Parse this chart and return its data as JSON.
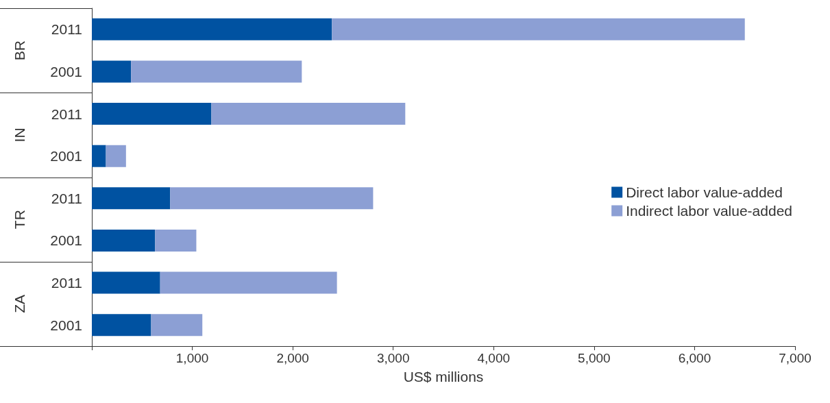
{
  "chart_data": {
    "type": "bar",
    "orientation": "horizontal",
    "stacked": true,
    "categories": [
      "2011",
      "2001",
      "2011",
      "2001",
      "2011",
      "2001",
      "2011",
      "2001"
    ],
    "annotations": [
      "BR",
      "IN",
      "TR",
      "ZA"
    ],
    "xlabel": "US$ millions",
    "series": [
      {
        "name": "Direct labor value-added",
        "color": "#0052a1",
        "values": [
          2390,
          390,
          1190,
          140,
          780,
          630,
          680,
          590
        ]
      },
      {
        "name": "Indirect labor value-added",
        "color": "#8c9fd4",
        "values": [
          4110,
          1700,
          1930,
          200,
          2020,
          410,
          1760,
          510
        ]
      }
    ],
    "xlim": [
      0,
      7000
    ],
    "xticks": [
      {
        "value": 0,
        "label": null
      },
      {
        "value": 1000,
        "label": "1,000"
      },
      {
        "value": 2000,
        "label": "2,000"
      },
      {
        "value": 3000,
        "label": "3,000"
      },
      {
        "value": 4000,
        "label": "4,000"
      },
      {
        "value": 5000,
        "label": "5,000"
      },
      {
        "value": 6000,
        "label": "6,000"
      },
      {
        "value": 7000,
        "label": "7,000"
      }
    ],
    "grid": false,
    "legend": "right"
  }
}
